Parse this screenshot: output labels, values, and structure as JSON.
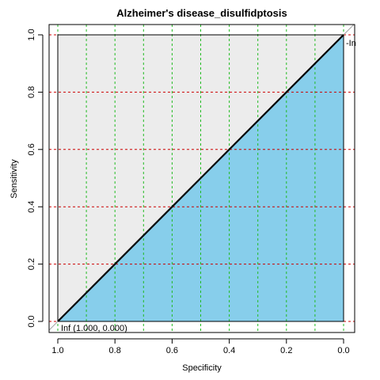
{
  "colors": {
    "auc_fill": "#87ceeb",
    "max_area_fill": "#ececec",
    "roc_line": "#000000",
    "diagonal": "#a0a0a0",
    "grid_x": "#22bb22",
    "grid_y": "#cc0000",
    "axis": "#000000"
  },
  "chart_data": {
    "type": "line",
    "title": "Alzheimer's disease_disulfidptosis",
    "xlabel": "Specificity",
    "ylabel": "Sensitivity",
    "x_reversed": true,
    "xlim": [
      1.0,
      0.0
    ],
    "ylim": [
      0.0,
      1.0
    ],
    "x_ticks": [
      "1.0",
      "0.8",
      "0.6",
      "0.4",
      "0.2",
      "0.0"
    ],
    "y_ticks": [
      "0.0",
      "0.2",
      "0.4",
      "0.6",
      "0.8",
      "1.0"
    ],
    "x_grid": [
      1.0,
      0.9,
      0.8,
      0.7,
      0.6,
      0.5,
      0.4,
      0.3,
      0.2,
      0.1,
      0.0
    ],
    "y_grid": [
      0.0,
      0.2,
      0.4,
      0.6,
      0.8,
      1.0
    ],
    "grid": true,
    "series": [
      {
        "specificity": [
          1.0,
          0.0
        ],
        "sensitivity": [
          0.0,
          1.0
        ]
      }
    ],
    "annotations": [
      {
        "text": "Inf (1.000, 0.000)",
        "specificity": 1.0,
        "sensitivity": 0.0
      },
      {
        "text": "-In",
        "specificity": 0.0,
        "sensitivity": 1.0
      }
    ]
  }
}
